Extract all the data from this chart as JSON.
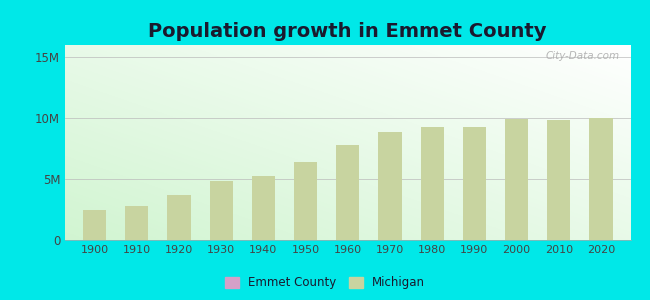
{
  "title": "Population growth in Emmet County",
  "title_fontsize": 14,
  "title_fontweight": "bold",
  "years": [
    1900,
    1910,
    1920,
    1930,
    1940,
    1950,
    1960,
    1970,
    1980,
    1990,
    2000,
    2010,
    2020
  ],
  "michigan_pop": [
    2420982,
    2810173,
    3668412,
    4842325,
    5256106,
    6371766,
    7823194,
    8881826,
    9262078,
    9295297,
    9938444,
    9883640,
    10037261
  ],
  "bar_color": "#c8d4a0",
  "bar_color_emmet": "#d4a0c8",
  "outer_bg": "#00e8e8",
  "ylim": [
    0,
    16000000
  ],
  "yticks": [
    0,
    5000000,
    10000000,
    15000000
  ],
  "ytick_labels": [
    "0",
    "5M",
    "10M",
    "15M"
  ],
  "watermark": "City-Data.com",
  "legend_emmet_label": "Emmet County",
  "legend_michigan_label": "Michigan",
  "bar_width": 5.5,
  "title_color": "#1a1a2e"
}
